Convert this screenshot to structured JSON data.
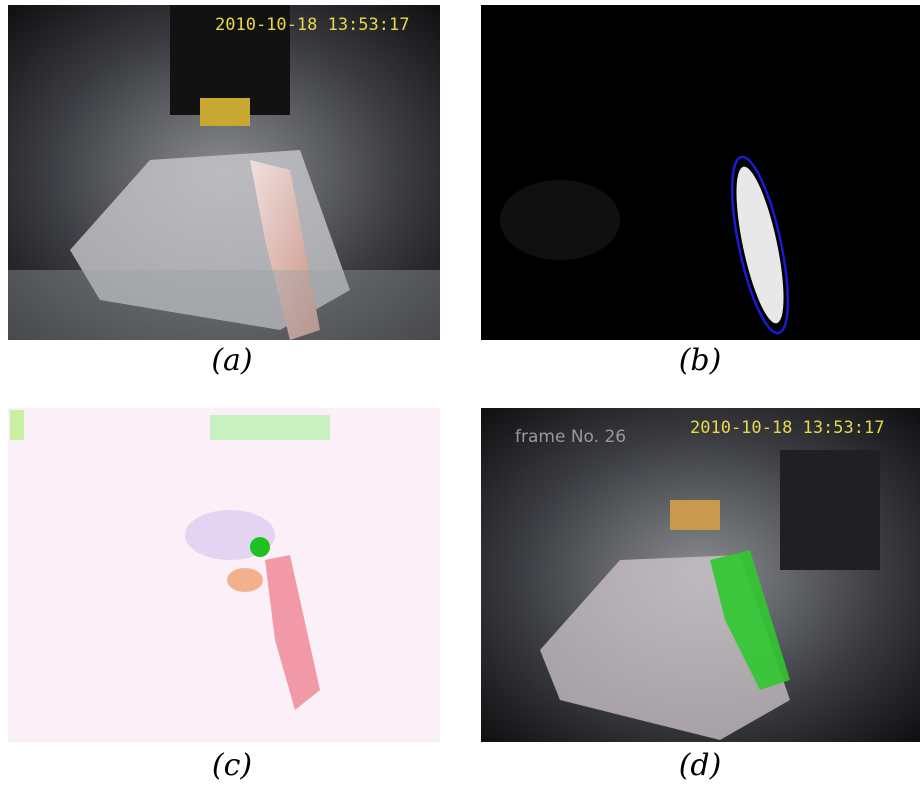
{
  "panels": [
    {
      "label": "(a)",
      "overlay": [
        "2010-10-18 13:53:17"
      ]
    },
    {
      "label": "(b)",
      "overlay": []
    },
    {
      "label": "(c)",
      "overlay": []
    },
    {
      "label": "(d)",
      "overlay": [
        "frame No. 26",
        "2010-10-18 13:53:17"
      ]
    }
  ]
}
